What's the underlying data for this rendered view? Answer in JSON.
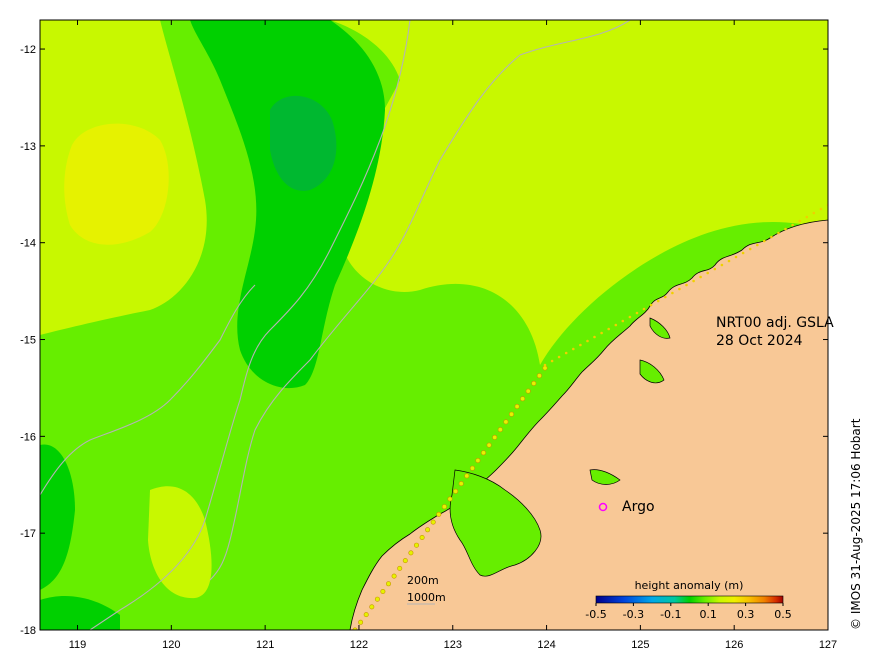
{
  "map": {
    "title_line1": "NRT00 adj. GSLA",
    "title_line2": "28 Oct 2024",
    "credit": "© IMOS 31-Aug-2025 17:06 Hobart",
    "argo_label": "Argo",
    "depth_label_1": "200m",
    "depth_label_2": "1000m",
    "x_ticks": [
      "119",
      "120",
      "121",
      "122",
      "123",
      "124",
      "125",
      "126",
      "127"
    ],
    "y_ticks": [
      "-12",
      "-13",
      "-14",
      "-15",
      "-16",
      "-17",
      "-18"
    ],
    "extent": {
      "lon": [
        118.6,
        127.0
      ],
      "lat": [
        -18.0,
        -11.7
      ]
    }
  },
  "legend": {
    "title": "height anomaly (m)",
    "ticks": [
      "-0.5",
      "-0.3",
      "-0.1",
      "0.1",
      "0.3",
      "0.5"
    ],
    "colors": [
      "#00008b",
      "#0044dd",
      "#00a8e8",
      "#00c8a0",
      "#00d000",
      "#66ee00",
      "#c8f800",
      "#f0f000",
      "#f8c000",
      "#f08000",
      "#d83000",
      "#a00000"
    ]
  },
  "colors": {
    "land": "#f8c896",
    "field_base": "#66ee00",
    "field_low": "#00d000",
    "field_lower": "#00b830",
    "field_high": "#c8f800",
    "field_higher": "#e6f200",
    "bathymetry": "#b4b4b4",
    "argo": "#ff00ff"
  }
}
